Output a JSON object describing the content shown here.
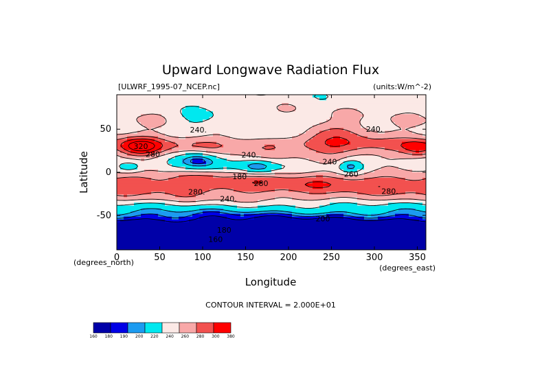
{
  "chart_data": {
    "type": "heatmap",
    "title": "Upward Longwave Radiation Flux",
    "source_label": "[ULWRF_1995-07_NCEP.nc]",
    "units_label": "(units:W/m^-2)",
    "xlabel": "Longitude",
    "ylabel": "Latitude",
    "x_unit_label": "(degrees_east)",
    "y_unit_label": "(degrees_north)",
    "xlim": [
      0,
      360
    ],
    "ylim": [
      -90,
      90
    ],
    "x_ticks": [
      0,
      50,
      100,
      150,
      200,
      250,
      300,
      350
    ],
    "y_ticks": [
      50,
      0,
      -50
    ],
    "contour_interval_label": "CONTOUR INTERVAL = 2.000E+01",
    "contour_labels": [
      {
        "text": "240.",
        "lon": 95,
        "lat": 46
      },
      {
        "text": "320",
        "lon": 28,
        "lat": 27
      },
      {
        "text": "280",
        "lon": 42,
        "lat": 18
      },
      {
        "text": "240.",
        "lon": 155,
        "lat": 17
      },
      {
        "text": "240.",
        "lon": 300,
        "lat": 47
      },
      {
        "text": "240",
        "lon": 248,
        "lat": 9
      },
      {
        "text": "260",
        "lon": 273,
        "lat": -5
      },
      {
        "text": "180",
        "lon": 143,
        "lat": -8
      },
      {
        "text": "280",
        "lon": 168,
        "lat": -16
      },
      {
        "text": "280.",
        "lon": 93,
        "lat": -26
      },
      {
        "text": "280.",
        "lon": 318,
        "lat": -25
      },
      {
        "text": "240.",
        "lon": 130,
        "lat": -34
      },
      {
        "text": "200",
        "lon": 240,
        "lat": -57
      },
      {
        "text": "180",
        "lon": 125,
        "lat": -70
      },
      {
        "text": "160",
        "lon": 115,
        "lat": -81
      }
    ],
    "colorbar": {
      "levels": [
        "160",
        "180",
        "190",
        "200",
        "220",
        "240",
        "260",
        "280",
        "300",
        "380"
      ],
      "colors": [
        "#0000a8",
        "#0000e6",
        "#1c9bf0",
        "#00e8ef",
        "#fbe9e6",
        "#f8a8a8",
        "#f2514f",
        "#ff0000"
      ]
    },
    "colors": {
      "deep_blue": "#0000a8",
      "blue": "#0000e6",
      "sky": "#1c9bf0",
      "cyan": "#00e8ef",
      "pale": "#fbe9e6",
      "pink": "#f8a8a8",
      "red": "#f2514f",
      "bright_red": "#ff0000"
    }
  }
}
